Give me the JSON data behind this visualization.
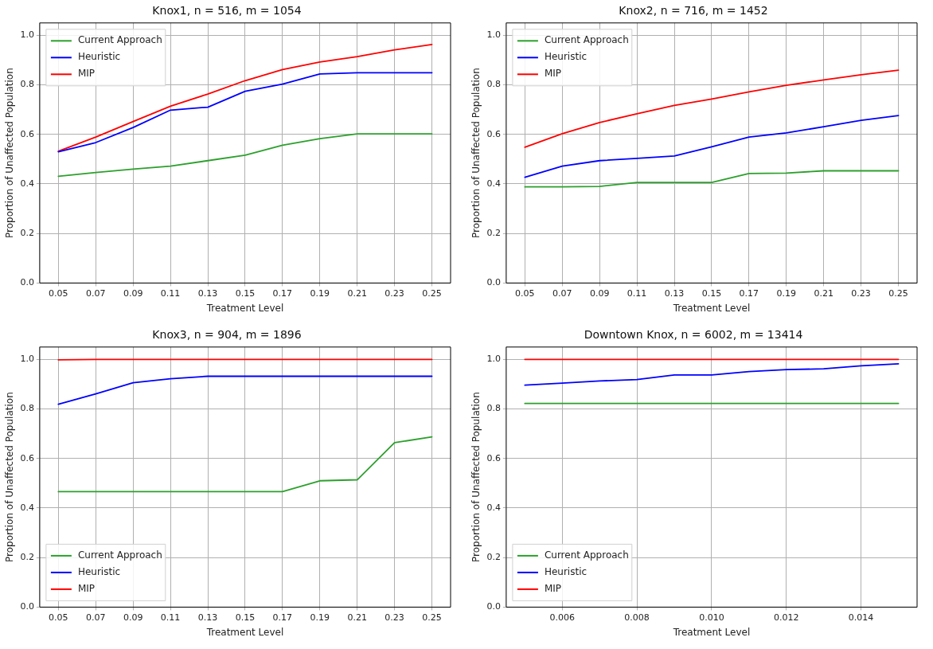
{
  "chart_data": [
    {
      "type": "line",
      "title": "Knox1, n = 516, m = 1054",
      "xlabel": "Treatment Level",
      "ylabel": "Proportion of Unaffected Population",
      "categories": [
        "0.05",
        "0.07",
        "0.09",
        "0.11",
        "0.13",
        "0.15",
        "0.17",
        "0.19",
        "0.21",
        "0.23",
        "0.25"
      ],
      "ylim": [
        0,
        1.05
      ],
      "yticks": [
        {
          "value": 0,
          "label": "0.0"
        },
        {
          "value": 0.2,
          "label": "0.2"
        },
        {
          "value": 0.4,
          "label": "0.4"
        },
        {
          "value": 0.6,
          "label": "0.6"
        },
        {
          "value": 0.8,
          "label": "0.8"
        },
        {
          "value": 1,
          "label": "1.0"
        }
      ],
      "grid": true,
      "legend": "top left",
      "series": [
        {
          "name": "Current Approach",
          "color": "#2ca02c",
          "values": [
            0.431,
            0.446,
            0.46,
            0.472,
            0.494,
            0.516,
            0.556,
            0.583,
            0.602,
            0.602,
            0.602
          ]
        },
        {
          "name": "Heuristic",
          "color": "#0000ff",
          "values": [
            0.53,
            0.567,
            0.628,
            0.698,
            0.71,
            0.774,
            0.803,
            0.844,
            0.849,
            0.849,
            0.849
          ]
        },
        {
          "name": "MIP",
          "color": "#ff0000",
          "values": [
            0.532,
            0.589,
            0.652,
            0.714,
            0.763,
            0.817,
            0.862,
            0.892,
            0.914,
            0.941,
            0.963
          ]
        }
      ]
    },
    {
      "type": "line",
      "title": "Knox2, n = 716, m = 1452",
      "xlabel": "Treatment Level",
      "ylabel": "Proportion of Unaffected Population",
      "categories": [
        "0.05",
        "0.07",
        "0.09",
        "0.11",
        "0.13",
        "0.15",
        "0.17",
        "0.19",
        "0.21",
        "0.23",
        "0.25"
      ],
      "ylim": [
        0,
        1.05
      ],
      "yticks": [
        {
          "value": 0,
          "label": "0.0"
        },
        {
          "value": 0.2,
          "label": "0.2"
        },
        {
          "value": 0.4,
          "label": "0.4"
        },
        {
          "value": 0.6,
          "label": "0.6"
        },
        {
          "value": 0.8,
          "label": "0.8"
        },
        {
          "value": 1,
          "label": "1.0"
        }
      ],
      "grid": true,
      "legend": "top left",
      "series": [
        {
          "name": "Current Approach",
          "color": "#2ca02c",
          "values": [
            0.388,
            0.388,
            0.39,
            0.406,
            0.406,
            0.406,
            0.442,
            0.444,
            0.453,
            0.453,
            0.453
          ]
        },
        {
          "name": "Heuristic",
          "color": "#0000ff",
          "values": [
            0.427,
            0.472,
            0.494,
            0.503,
            0.513,
            0.55,
            0.589,
            0.606,
            0.631,
            0.657,
            0.676
          ]
        },
        {
          "name": "MIP",
          "color": "#ff0000",
          "values": [
            0.548,
            0.603,
            0.648,
            0.683,
            0.717,
            0.743,
            0.772,
            0.798,
            0.82,
            0.841,
            0.859
          ]
        }
      ]
    },
    {
      "type": "line",
      "title": "Knox3, n = 904, m = 1896",
      "xlabel": "Treatment Level",
      "ylabel": "Proportion of Unaffected Population",
      "categories": [
        "0.05",
        "0.07",
        "0.09",
        "0.11",
        "0.13",
        "0.15",
        "0.17",
        "0.19",
        "0.21",
        "0.23",
        "0.25"
      ],
      "ylim": [
        0,
        1.05
      ],
      "yticks": [
        {
          "value": 0,
          "label": "0.0"
        },
        {
          "value": 0.2,
          "label": "0.2"
        },
        {
          "value": 0.4,
          "label": "0.4"
        },
        {
          "value": 0.6,
          "label": "0.6"
        },
        {
          "value": 0.8,
          "label": "0.8"
        },
        {
          "value": 1,
          "label": "1.0"
        }
      ],
      "grid": true,
      "legend": "bottom left",
      "series": [
        {
          "name": "Current Approach",
          "color": "#2ca02c",
          "values": [
            0.466,
            0.466,
            0.466,
            0.466,
            0.466,
            0.466,
            0.466,
            0.51,
            0.514,
            0.664,
            0.687
          ]
        },
        {
          "name": "Heuristic",
          "color": "#0000ff",
          "values": [
            0.819,
            0.861,
            0.906,
            0.922,
            0.932,
            0.932,
            0.932,
            0.932,
            0.932,
            0.932,
            0.932
          ]
        },
        {
          "name": "MIP",
          "color": "#ff0000",
          "values": [
            0.998,
            1,
            1,
            1,
            1,
            1,
            1,
            1,
            1,
            1,
            1
          ]
        }
      ]
    },
    {
      "type": "line",
      "title": "Downtown Knox, n = 6002, m = 13414",
      "xlabel": "Treatment Level",
      "ylabel": "Proportion of Unaffected Population",
      "x": [
        0.005,
        0.006,
        0.007,
        0.008,
        0.009,
        0.01,
        0.011,
        0.012,
        0.013,
        0.014,
        0.015
      ],
      "xlim": [
        0.0045,
        0.0155
      ],
      "xticks": [
        {
          "value": 0.006,
          "label": "0.006"
        },
        {
          "value": 0.008,
          "label": "0.008"
        },
        {
          "value": 0.01,
          "label": "0.010"
        },
        {
          "value": 0.012,
          "label": "0.012"
        },
        {
          "value": 0.014,
          "label": "0.014"
        }
      ],
      "ylim": [
        0,
        1.05
      ],
      "yticks": [
        {
          "value": 0,
          "label": "0.0"
        },
        {
          "value": 0.2,
          "label": "0.2"
        },
        {
          "value": 0.4,
          "label": "0.4"
        },
        {
          "value": 0.6,
          "label": "0.6"
        },
        {
          "value": 0.8,
          "label": "0.8"
        },
        {
          "value": 1,
          "label": "1.0"
        }
      ],
      "grid": true,
      "legend": "bottom left",
      "series": [
        {
          "name": "Current Approach",
          "color": "#2ca02c",
          "values": [
            0.822,
            0.822,
            0.822,
            0.822,
            0.822,
            0.822,
            0.822,
            0.822,
            0.822,
            0.822,
            0.822
          ]
        },
        {
          "name": "Heuristic",
          "color": "#0000ff",
          "values": [
            0.896,
            0.904,
            0.913,
            0.919,
            0.937,
            0.937,
            0.951,
            0.959,
            0.962,
            0.974,
            0.982
          ]
        },
        {
          "name": "MIP",
          "color": "#ff0000",
          "values": [
            1,
            1,
            1,
            1,
            1,
            1,
            1,
            1,
            1,
            1,
            1
          ]
        }
      ]
    }
  ]
}
